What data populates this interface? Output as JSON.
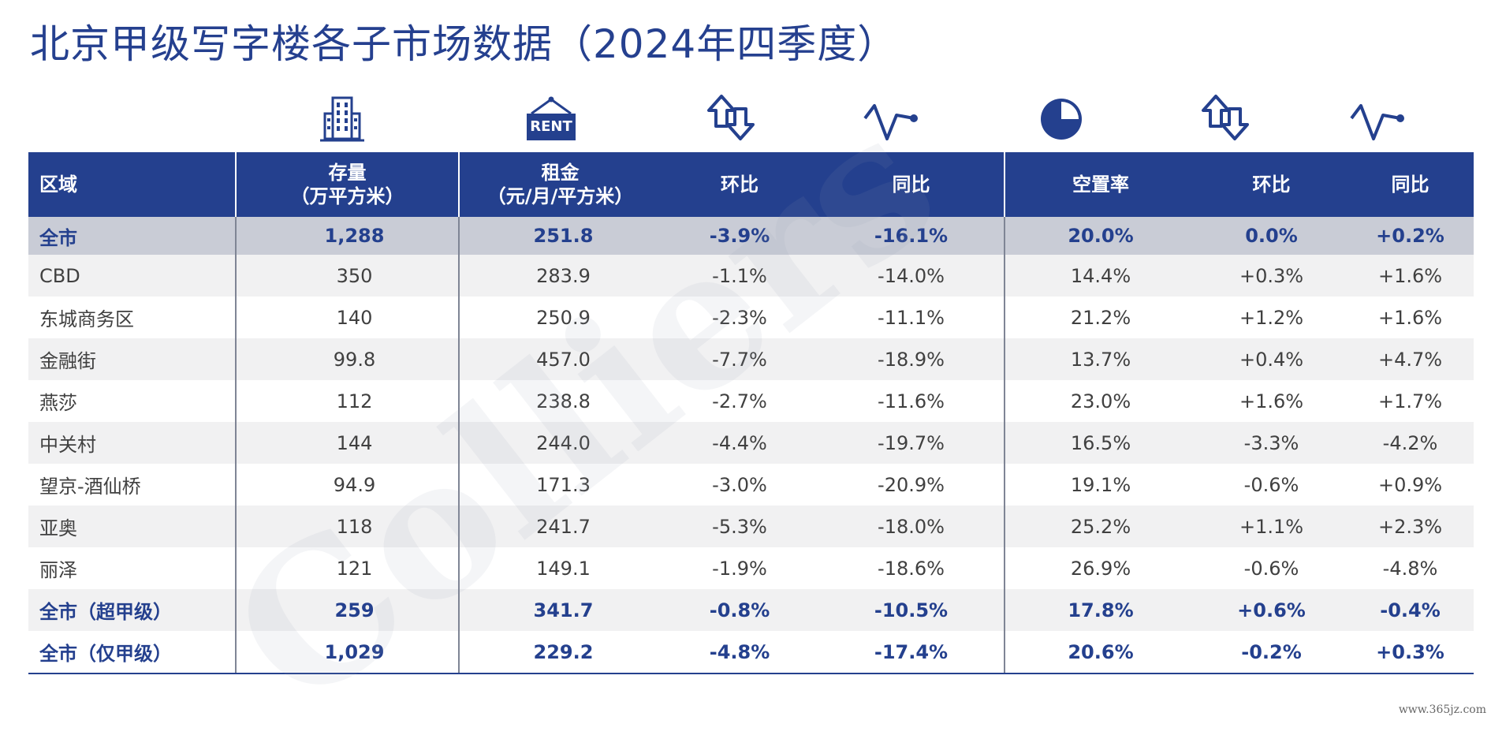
{
  "title": "北京甲级写字楼各子市场数据（2024年四季度）",
  "watermark": "Colliers",
  "source_mark": "www.365jz.com",
  "icons": {
    "stock": "office-building-icon",
    "rent": "rent-sign-icon",
    "rent_qoq": "up-down-arrows-icon",
    "rent_yoy": "trend-line-icon",
    "vacancy": "pie-chart-icon",
    "vacancy_qoq": "up-down-arrows-icon",
    "vacancy_yoy": "trend-line-icon",
    "rent_sign_text": "RENT"
  },
  "colors": {
    "accent": "#24408e",
    "total_row_bg": "#c9ccd6",
    "alt_row_bg": "#f1f1f2"
  },
  "headers": {
    "area": "区域",
    "stock_line1": "存量",
    "stock_line2": "（万平方米）",
    "rent_line1": "租金",
    "rent_line2": "（元/月/平方米）",
    "rent_qoq": "环比",
    "rent_yoy": "同比",
    "vacancy": "空置率",
    "vacancy_qoq": "环比",
    "vacancy_yoy": "同比"
  },
  "rows": [
    [
      "全市",
      "1,288",
      "251.8",
      "-3.9%",
      "-16.1%",
      "20.0%",
      "0.0%",
      "+0.2%"
    ],
    [
      "CBD",
      "350",
      "283.9",
      "-1.1%",
      "-14.0%",
      "14.4%",
      "+0.3%",
      "+1.6%"
    ],
    [
      "东城商务区",
      "140",
      "250.9",
      "-2.3%",
      "-11.1%",
      "21.2%",
      "+1.2%",
      "+1.6%"
    ],
    [
      "金融街",
      "99.8",
      "457.0",
      "-7.7%",
      "-18.9%",
      "13.7%",
      "+0.4%",
      "+4.7%"
    ],
    [
      "燕莎",
      "112",
      "238.8",
      "-2.7%",
      "-11.6%",
      "23.0%",
      "+1.6%",
      "+1.7%"
    ],
    [
      "中关村",
      "144",
      "244.0",
      "-4.4%",
      "-19.7%",
      "16.5%",
      "-3.3%",
      "-4.2%"
    ],
    [
      "望京-酒仙桥",
      "94.9",
      "171.3",
      "-3.0%",
      "-20.9%",
      "19.1%",
      "-0.6%",
      "+0.9%"
    ],
    [
      "亚奥",
      "118",
      "241.7",
      "-5.3%",
      "-18.0%",
      "25.2%",
      "+1.1%",
      "+2.3%"
    ],
    [
      "丽泽",
      "121",
      "149.1",
      "-1.9%",
      "-18.6%",
      "26.9%",
      "-0.6%",
      "-4.8%"
    ],
    [
      "全市（超甲级）",
      "259",
      "341.7",
      "-0.8%",
      "-10.5%",
      "17.8%",
      "+0.6%",
      "-0.4%"
    ],
    [
      "全市（仅甲级）",
      "1,029",
      "229.2",
      "-4.8%",
      "-17.4%",
      "20.6%",
      "-0.2%",
      "+0.3%"
    ]
  ]
}
